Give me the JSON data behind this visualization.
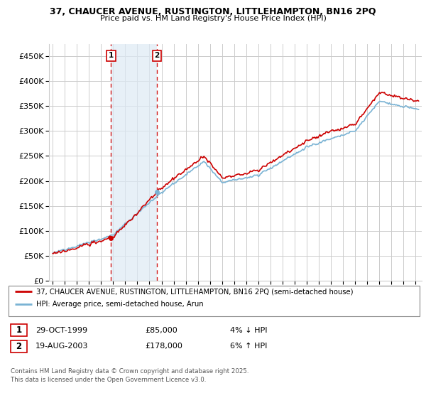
{
  "title": "37, CHAUCER AVENUE, RUSTINGTON, LITTLEHAMPTON, BN16 2PQ",
  "subtitle": "Price paid vs. HM Land Registry's House Price Index (HPI)",
  "legend_label1": "37, CHAUCER AVENUE, RUSTINGTON, LITTLEHAMPTON, BN16 2PQ (semi-detached house)",
  "legend_label2": "HPI: Average price, semi-detached house, Arun",
  "footer": "Contains HM Land Registry data © Crown copyright and database right 2025.\nThis data is licensed under the Open Government Licence v3.0.",
  "transaction1_date": "29-OCT-1999",
  "transaction1_price": "£85,000",
  "transaction1_hpi": "4% ↓ HPI",
  "transaction2_date": "19-AUG-2003",
  "transaction2_price": "£178,000",
  "transaction2_hpi": "6% ↑ HPI",
  "hpi_line_color": "#7ab3d4",
  "price_line_color": "#cc0000",
  "vline_color": "#cc0000",
  "background_color": "#ffffff",
  "grid_color": "#cccccc",
  "ylim": [
    0,
    475000
  ],
  "yticks": [
    0,
    50000,
    100000,
    150000,
    200000,
    250000,
    300000,
    350000,
    400000,
    450000
  ],
  "ytick_labels": [
    "£0",
    "£50K",
    "£100K",
    "£150K",
    "£200K",
    "£250K",
    "£300K",
    "£350K",
    "£400K",
    "£450K"
  ],
  "transaction1_x": 1999.83,
  "transaction1_y": 85000,
  "transaction2_x": 2003.63,
  "transaction2_y": 178000,
  "shade_color": "#deeaf5",
  "shade_alpha": 0.7,
  "xlim_left": 1994.7,
  "xlim_right": 2025.5
}
